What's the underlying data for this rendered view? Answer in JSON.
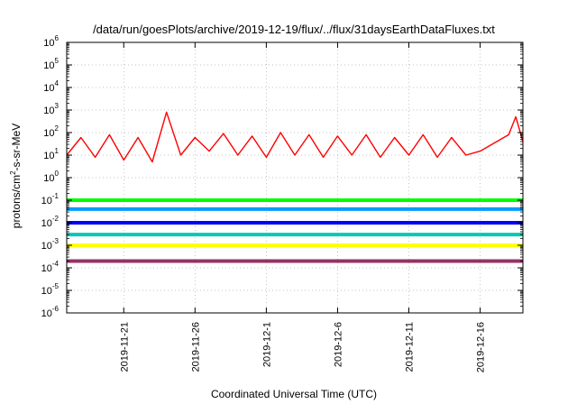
{
  "chart_data": {
    "type": "line",
    "title": "/data/run/goesPlots/archive/2019-12-19/flux/../flux/31daysEarthDataFluxes.txt",
    "xlabel": "Coordinated Universal Time (UTC)",
    "ylabel_parts": [
      "protons/cm",
      "2",
      "-s-sr-MeV"
    ],
    "y_scale": "log",
    "ylim": [
      1e-06,
      1000000.0
    ],
    "xlim": [
      "2019-11-17",
      "2019-12-19"
    ],
    "grid": true,
    "x_ticks": [
      "2019-11-21",
      "2019-11-26",
      "2019-12-1",
      "2019-12-6",
      "2019-12-11",
      "2019-12-16"
    ],
    "y_ticks": [
      {
        "base": "10",
        "exp": "-6"
      },
      {
        "base": "10",
        "exp": "-5"
      },
      {
        "base": "10",
        "exp": "-4"
      },
      {
        "base": "10",
        "exp": "-3"
      },
      {
        "base": "10",
        "exp": "-2"
      },
      {
        "base": "10",
        "exp": "-1"
      },
      {
        "base": "10",
        "exp": "0"
      },
      {
        "base": "10",
        "exp": "1"
      },
      {
        "base": "10",
        "exp": "2"
      },
      {
        "base": "10",
        "exp": "3"
      },
      {
        "base": "10",
        "exp": "4"
      },
      {
        "base": "10",
        "exp": "5"
      },
      {
        "base": "10",
        "exp": "6"
      }
    ],
    "series": [
      {
        "color": "#ff0000",
        "points": [
          [
            "2019-11-17",
            10
          ],
          [
            "2019-11-18",
            60
          ],
          [
            "2019-11-19",
            8
          ],
          [
            "2019-11-20",
            80
          ],
          [
            "2019-11-21",
            6
          ],
          [
            "2019-11-22",
            60
          ],
          [
            "2019-11-23",
            5
          ],
          [
            "2019-11-24",
            800
          ],
          [
            "2019-11-25",
            10
          ],
          [
            "2019-11-26",
            60
          ],
          [
            "2019-11-27",
            15
          ],
          [
            "2019-11-28",
            90
          ],
          [
            "2019-11-29",
            10
          ],
          [
            "2019-11-30",
            70
          ],
          [
            "2019-12-01",
            8
          ],
          [
            "2019-12-02",
            100
          ],
          [
            "2019-12-03",
            10
          ],
          [
            "2019-12-04",
            80
          ],
          [
            "2019-12-05",
            8
          ],
          [
            "2019-12-06",
            70
          ],
          [
            "2019-12-07",
            10
          ],
          [
            "2019-12-08",
            80
          ],
          [
            "2019-12-09",
            8
          ],
          [
            "2019-12-10",
            60
          ],
          [
            "2019-12-11",
            10
          ],
          [
            "2019-12-12",
            80
          ],
          [
            "2019-12-13",
            8
          ],
          [
            "2019-12-14",
            60
          ],
          [
            "2019-12-15",
            10
          ],
          [
            "2019-12-16",
            15
          ],
          [
            "2019-12-18",
            80
          ],
          [
            "2019-12-18.5",
            500
          ],
          [
            "2019-12-19",
            40
          ]
        ]
      },
      {
        "color": "#00ff00",
        "points": [
          [
            "2019-11-17",
            0.1
          ],
          [
            "2019-12-16",
            0.1
          ],
          [
            "2019-12-18",
            0.1
          ],
          [
            "2019-12-19",
            0.1
          ]
        ]
      },
      {
        "color": "#009bff",
        "points": [
          [
            "2019-11-17",
            0.04
          ],
          [
            "2019-12-16",
            0.04
          ],
          [
            "2019-12-18",
            0.04
          ],
          [
            "2019-12-19",
            0.04
          ]
        ]
      },
      {
        "color": "#0000ff",
        "points": [
          [
            "2019-11-17",
            0.01
          ],
          [
            "2019-12-16",
            0.01
          ],
          [
            "2019-12-18",
            0.01
          ],
          [
            "2019-12-19",
            0.01
          ]
        ]
      },
      {
        "color": "#00c8b4",
        "points": [
          [
            "2019-11-17",
            0.003
          ],
          [
            "2019-12-16",
            0.003
          ],
          [
            "2019-12-18",
            0.003
          ],
          [
            "2019-12-19",
            0.003
          ]
        ]
      },
      {
        "color": "#ffff00",
        "points": [
          [
            "2019-11-17",
            0.001
          ],
          [
            "2019-12-16",
            0.001
          ],
          [
            "2019-12-18",
            0.001
          ],
          [
            "2019-12-19",
            0.001
          ]
        ]
      },
      {
        "color": "#963264",
        "points": [
          [
            "2019-11-17",
            0.0002
          ],
          [
            "2019-12-16",
            0.0002
          ],
          [
            "2019-12-18",
            0.0002
          ],
          [
            "2019-12-19",
            0.0002
          ]
        ]
      }
    ]
  }
}
